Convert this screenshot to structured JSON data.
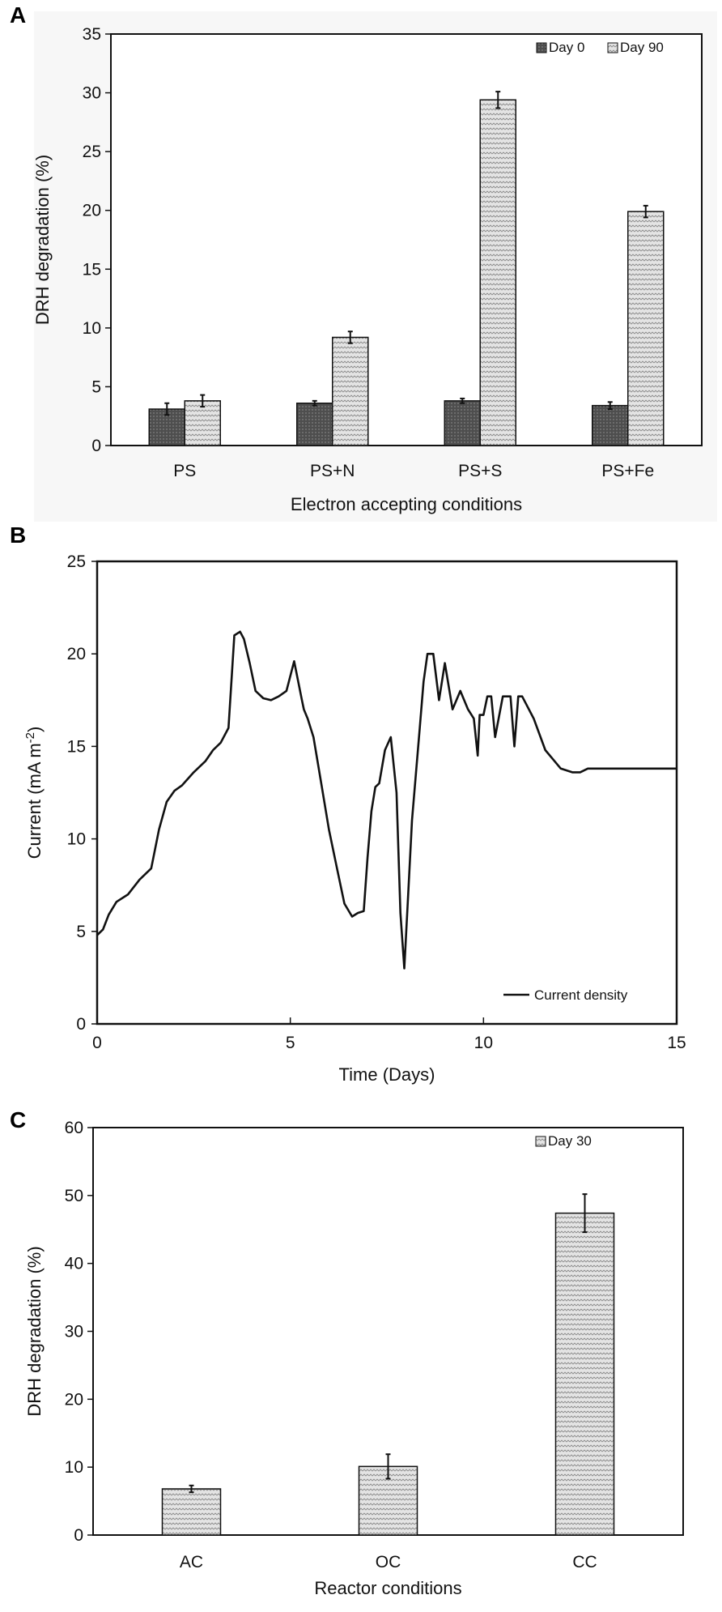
{
  "chart_data": [
    {
      "panel": "A",
      "type": "bar",
      "xlabel": "Electron accepting conditions",
      "ylabel": "DRH degradation (%)",
      "ylim": [
        0,
        35
      ],
      "yticks": [
        0,
        5,
        10,
        15,
        20,
        25,
        30,
        35
      ],
      "categories": [
        "PS",
        "PS+N",
        "PS+S",
        "PS+Fe"
      ],
      "legend_position": "top-right",
      "series": [
        {
          "name": "Day 0",
          "values": [
            3.1,
            3.6,
            3.8,
            3.4
          ],
          "errors": [
            0.5,
            0.2,
            0.2,
            0.3
          ],
          "color": "#555555"
        },
        {
          "name": "Day 90",
          "values": [
            3.8,
            9.2,
            29.4,
            19.9
          ],
          "errors": [
            0.5,
            0.5,
            0.7,
            0.5
          ],
          "color": "#d4d4d4"
        }
      ]
    },
    {
      "panel": "B",
      "type": "line",
      "xlabel": "Time (Days)",
      "ylabel": "Current (mA m-2)",
      "ylabel_parts": [
        "Current (mA m",
        "-2",
        ")"
      ],
      "xlim": [
        0,
        15
      ],
      "ylim": [
        0,
        25
      ],
      "xticks": [
        0,
        5,
        10,
        15
      ],
      "yticks": [
        0,
        5,
        10,
        15,
        20,
        25
      ],
      "legend_position": "bottom-right",
      "series": [
        {
          "name": "Current density",
          "color": "#111111",
          "x": [
            0,
            0.15,
            0.3,
            0.5,
            0.8,
            1.1,
            1.4,
            1.6,
            1.8,
            2.0,
            2.2,
            2.5,
            2.8,
            3.0,
            3.2,
            3.4,
            3.55,
            3.7,
            3.8,
            3.95,
            4.1,
            4.3,
            4.5,
            4.7,
            4.9,
            5.1,
            5.3,
            5.35,
            5.45,
            5.6,
            5.8,
            6.0,
            6.2,
            6.4,
            6.6,
            6.75,
            6.9,
            7.0,
            7.1,
            7.2,
            7.3,
            7.45,
            7.6,
            7.75,
            7.85,
            7.95,
            8.05,
            8.15,
            8.25,
            8.35,
            8.45,
            8.55,
            8.7,
            8.85,
            9.0,
            9.2,
            9.4,
            9.6,
            9.75,
            9.85,
            9.9,
            9.95,
            10.0,
            10.1,
            10.2,
            10.3,
            10.5,
            10.7,
            10.8,
            10.9,
            11.0,
            11.3,
            11.6,
            11.8,
            12.0,
            12.3,
            12.5,
            12.7,
            12.9,
            13.1,
            13.3,
            13.5,
            13.7,
            14.0,
            14.5,
            15.0
          ],
          "y": [
            4.8,
            5.1,
            5.9,
            6.6,
            7.0,
            7.8,
            8.4,
            10.5,
            12.0,
            12.6,
            12.9,
            13.6,
            14.2,
            14.8,
            15.2,
            16.0,
            21.0,
            21.2,
            20.8,
            19.5,
            18.0,
            17.6,
            17.5,
            17.7,
            18.0,
            19.6,
            17.5,
            17.0,
            16.5,
            15.5,
            13.0,
            10.5,
            8.5,
            6.5,
            5.8,
            6.0,
            6.1,
            9.0,
            11.5,
            12.8,
            13.0,
            14.8,
            15.5,
            12.5,
            6.0,
            3.0,
            7.0,
            11.0,
            13.5,
            16.0,
            18.5,
            20.0,
            20.0,
            17.5,
            19.5,
            17.0,
            18.0,
            17.0,
            16.5,
            14.5,
            16.7,
            16.7,
            16.7,
            17.7,
            17.7,
            15.5,
            17.7,
            17.7,
            15.0,
            17.7,
            17.7,
            16.5,
            14.8,
            14.3,
            13.8,
            13.6,
            13.6,
            13.8,
            13.8,
            13.8,
            13.8,
            13.8,
            13.8,
            13.8,
            13.8,
            13.8
          ]
        }
      ]
    },
    {
      "panel": "C",
      "type": "bar",
      "xlabel": "Reactor conditions",
      "ylabel": "DRH degradation (%)",
      "ylim": [
        0,
        60
      ],
      "yticks": [
        0,
        10,
        20,
        30,
        40,
        50,
        60
      ],
      "categories": [
        "AC",
        "OC",
        "CC"
      ],
      "legend_position": "top-right",
      "series": [
        {
          "name": "Day 30",
          "values": [
            6.8,
            10.1,
            47.4
          ],
          "errors": [
            0.5,
            1.8,
            2.8
          ],
          "color": "#d4d4d4"
        }
      ]
    }
  ]
}
